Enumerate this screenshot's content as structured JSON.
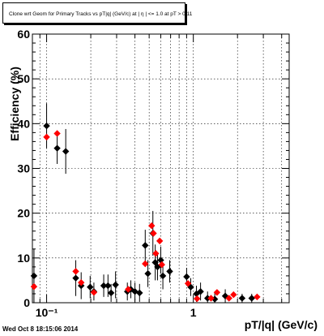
{
  "chart_data": {
    "type": "scatter",
    "title": "Clone wrt Geom for Primary Tracks vs pT|q| (GeV/c) at | η | <= 1.0 at pT > 0.11",
    "xlabel": "pT/|q| (GeV/c)",
    "ylabel": "Efficiency (%)",
    "x_scale": "log",
    "xlim": [
      0.08,
      4.5
    ],
    "ylim": [
      0,
      60
    ],
    "x_tick_labels": [
      "10⁻¹",
      "1"
    ],
    "y_tick_labels": [
      "0",
      "10",
      "20",
      "30",
      "40",
      "50",
      "60"
    ],
    "grid": true,
    "legend": "none",
    "series": [
      {
        "color": "#000000",
        "marker": "diamond",
        "points": [
          {
            "x": 0.082,
            "y": 6.0,
            "err": 6.0
          },
          {
            "x": 0.1,
            "y": 39.5,
            "err": 5.0
          },
          {
            "x": 0.118,
            "y": 34.5,
            "err": 3.5
          },
          {
            "x": 0.135,
            "y": 33.8,
            "err": 5.0
          },
          {
            "x": 0.158,
            "y": 5.5,
            "err": 4.0
          },
          {
            "x": 0.172,
            "y": 3.8,
            "err": 3.0
          },
          {
            "x": 0.198,
            "y": 3.5,
            "err": 2.5
          },
          {
            "x": 0.21,
            "y": 2.5,
            "err": 2.0
          },
          {
            "x": 0.245,
            "y": 3.8,
            "err": 2.5
          },
          {
            "x": 0.262,
            "y": 3.8,
            "err": 2.5
          },
          {
            "x": 0.275,
            "y": 2.2,
            "err": 2.0
          },
          {
            "x": 0.295,
            "y": 4.0,
            "err": 3.0
          },
          {
            "x": 0.355,
            "y": 2.5,
            "err": 2.0
          },
          {
            "x": 0.375,
            "y": 3.0,
            "err": 2.0
          },
          {
            "x": 0.4,
            "y": 2.5,
            "err": 2.0
          },
          {
            "x": 0.43,
            "y": 2.2,
            "err": 2.0
          },
          {
            "x": 0.47,
            "y": 12.8,
            "err": 3.5
          },
          {
            "x": 0.49,
            "y": 6.5,
            "err": 3.0
          },
          {
            "x": 0.53,
            "y": 15.5,
            "err": 5.0
          },
          {
            "x": 0.55,
            "y": 9.0,
            "err": 4.0
          },
          {
            "x": 0.57,
            "y": 8.0,
            "err": 3.0
          },
          {
            "x": 0.6,
            "y": 9.5,
            "err": 3.0
          },
          {
            "x": 0.62,
            "y": 6.0,
            "err": 3.0
          },
          {
            "x": 0.69,
            "y": 7.0,
            "err": 2.5
          },
          {
            "x": 0.9,
            "y": 5.8,
            "err": 2.0
          },
          {
            "x": 0.96,
            "y": 3.5,
            "err": 2.0
          },
          {
            "x": 1.05,
            "y": 2.0,
            "err": 1.8
          },
          {
            "x": 1.12,
            "y": 2.5,
            "err": 2.0
          },
          {
            "x": 1.25,
            "y": 1.0,
            "err": 1.5
          },
          {
            "x": 1.4,
            "y": 0.8,
            "err": 1.5
          },
          {
            "x": 1.65,
            "y": 1.5,
            "err": 1.5
          },
          {
            "x": 2.15,
            "y": 1.0,
            "err": 1.0
          },
          {
            "x": 2.5,
            "y": 1.0,
            "err": 1.0
          }
        ]
      },
      {
        "color": "#ff0000",
        "marker": "diamond",
        "points": [
          {
            "x": 0.082,
            "y": 3.6,
            "err": 0
          },
          {
            "x": 0.1,
            "y": 37.0,
            "err": 0
          },
          {
            "x": 0.118,
            "y": 37.8,
            "err": 0
          },
          {
            "x": 0.158,
            "y": 7.0,
            "err": 0
          },
          {
            "x": 0.172,
            "y": 4.5,
            "err": 0
          },
          {
            "x": 0.21,
            "y": 2.3,
            "err": 0
          },
          {
            "x": 0.36,
            "y": 3.0,
            "err": 0
          },
          {
            "x": 0.47,
            "y": 8.7,
            "err": 0
          },
          {
            "x": 0.52,
            "y": 17.2,
            "err": 0
          },
          {
            "x": 0.535,
            "y": 15.5,
            "err": 0
          },
          {
            "x": 0.555,
            "y": 11.0,
            "err": 0
          },
          {
            "x": 0.59,
            "y": 13.8,
            "err": 0
          },
          {
            "x": 0.61,
            "y": 8.5,
            "err": 0
          },
          {
            "x": 0.92,
            "y": 4.3,
            "err": 0
          },
          {
            "x": 1.06,
            "y": 0.9,
            "err": 0
          },
          {
            "x": 1.32,
            "y": 1.0,
            "err": 0
          },
          {
            "x": 1.45,
            "y": 2.3,
            "err": 0
          },
          {
            "x": 1.75,
            "y": 1.0,
            "err": 0
          },
          {
            "x": 1.88,
            "y": 1.8,
            "err": 0
          },
          {
            "x": 2.72,
            "y": 1.3,
            "err": 0
          }
        ]
      }
    ]
  },
  "footer": {
    "timestamp": "Wed Oct  8 18:15:06 2014"
  }
}
